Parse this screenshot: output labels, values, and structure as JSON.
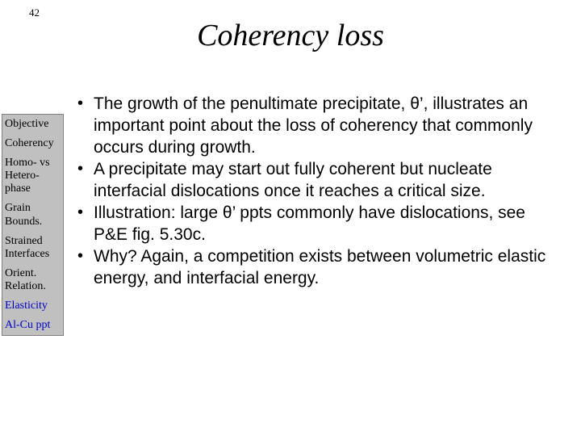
{
  "page_number": "42",
  "title": "Coherency loss",
  "sidebar": {
    "bg": "#c0c0c0",
    "items": [
      {
        "label": "Objective",
        "blue": false
      },
      {
        "label": "Coherency",
        "blue": false
      },
      {
        "label": "Homo- vs Hetero-phase",
        "blue": false
      },
      {
        "label": "Grain Bounds.",
        "blue": false
      },
      {
        "label": "Strained Interfaces",
        "blue": false
      },
      {
        "label": "Orient. Relation.",
        "blue": false
      },
      {
        "label": "Elasticity",
        "blue": true
      },
      {
        "label": "Al-Cu ppt",
        "blue": true
      }
    ]
  },
  "bullets": [
    "The growth of the penultimate precipitate, θ’, illustrates an important point about the loss of coherency that commonly occurs during growth.",
    "A precipitate may start out fully coherent but nucleate interfacial dislocations once it reaches a critical size.",
    "Illustration: large θ’ ppts commonly have dislocations, see P&E fig. 5.30c.",
    "Why?  Again, a competition exists between volumetric elastic energy, and interfacial energy."
  ],
  "colors": {
    "background": "#ffffff",
    "text": "#000000",
    "link": "#0000cc"
  },
  "typography": {
    "title_fontsize": 38,
    "title_style": "italic",
    "body_fontsize": 21,
    "body_family": "Arial",
    "sidebar_fontsize": 14,
    "sidebar_family": "Times New Roman"
  }
}
